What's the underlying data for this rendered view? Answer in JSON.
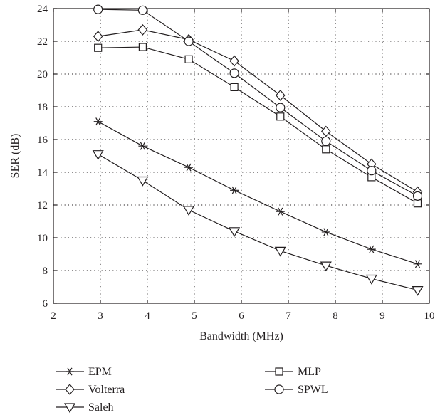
{
  "chart_data": {
    "type": "line",
    "xlabel": "Bandwidth (MHz)",
    "ylabel": "SER (dB)",
    "xlim": [
      2,
      10
    ],
    "ylim": [
      6,
      24
    ],
    "xticks": [
      2,
      3,
      4,
      5,
      6,
      7,
      8,
      9,
      10
    ],
    "yticks": [
      6,
      8,
      10,
      12,
      14,
      16,
      18,
      20,
      22,
      24
    ],
    "grid": true,
    "legend_position": "bottom, below plot, two columns",
    "series": [
      {
        "name": "EPM",
        "marker": "star",
        "x": [
          2.95,
          3.9,
          4.88,
          5.85,
          6.83,
          7.8,
          8.77,
          9.75
        ],
        "y": [
          17.1,
          15.6,
          14.3,
          12.9,
          11.6,
          10.35,
          9.3,
          8.4
        ]
      },
      {
        "name": "Volterra",
        "marker": "diamond",
        "x": [
          2.95,
          3.9,
          4.88,
          5.85,
          6.83,
          7.8,
          8.77,
          9.75
        ],
        "y": [
          22.3,
          22.7,
          22.1,
          20.8,
          18.7,
          16.5,
          14.5,
          12.8
        ]
      },
      {
        "name": "Saleh",
        "marker": "triangle-down",
        "x": [
          2.95,
          3.9,
          4.88,
          5.85,
          6.83,
          7.8,
          8.77,
          9.75
        ],
        "y": [
          15.1,
          13.5,
          11.7,
          10.4,
          9.2,
          8.3,
          7.5,
          6.8
        ]
      },
      {
        "name": "MLP",
        "marker": "square",
        "x": [
          2.95,
          3.9,
          4.88,
          5.85,
          6.83,
          7.8,
          8.77,
          9.75
        ],
        "y": [
          21.6,
          21.65,
          20.9,
          19.2,
          17.4,
          15.4,
          13.7,
          12.1
        ]
      },
      {
        "name": "SPWL",
        "marker": "circle",
        "x": [
          2.95,
          3.9,
          4.88,
          5.85,
          6.83,
          7.8,
          8.77,
          9.75
        ],
        "y": [
          23.95,
          23.9,
          22.0,
          20.05,
          17.95,
          15.9,
          14.1,
          12.55
        ]
      }
    ],
    "legend": [
      {
        "label": "EPM",
        "marker": "star"
      },
      {
        "label": "Volterra",
        "marker": "diamond"
      },
      {
        "label": "Saleh",
        "marker": "triangle-down"
      },
      {
        "label": "MLP",
        "marker": "square"
      },
      {
        "label": "SPWL",
        "marker": "circle"
      }
    ]
  }
}
